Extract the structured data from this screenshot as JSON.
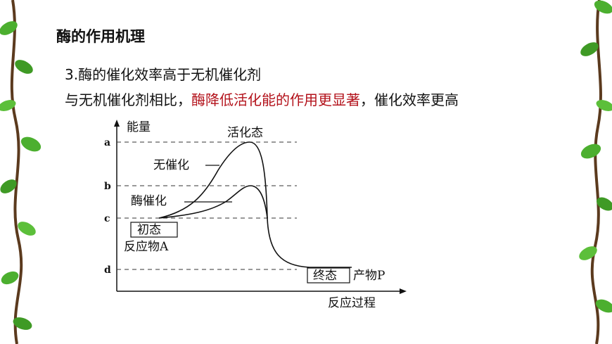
{
  "slide": {
    "title": "酶的作用机理",
    "point": "3.酶的催化效率高于无机催化剂",
    "explain_before": "与无机催化剂相比，",
    "explain_highlight": "酶降低活化能的作用更显著",
    "explain_after": "，催化效率更高",
    "highlight_color": "#b3121b"
  },
  "diagram": {
    "y_axis_label": "能量",
    "x_axis_label": "反应过程",
    "levels": [
      "a",
      "b",
      "c",
      "d"
    ],
    "activated_state": "活化态",
    "uncatalyzed": "无催化",
    "enzyme_catalyzed": "酶催化",
    "initial_state": "初态",
    "reactant": "反应物A",
    "final_state": "终态",
    "product": "产物P"
  }
}
